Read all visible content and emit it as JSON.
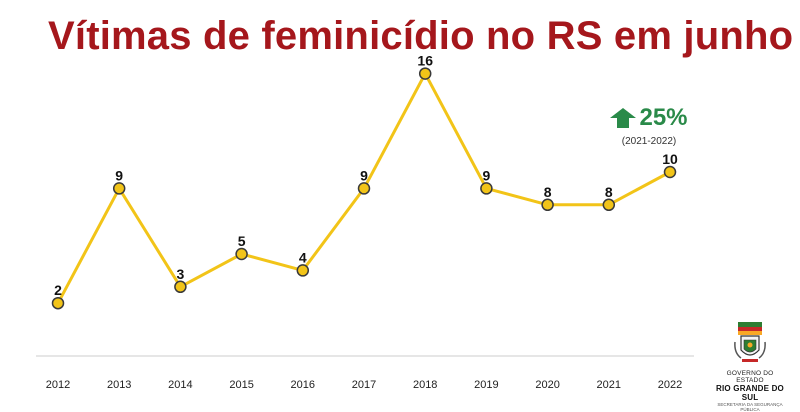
{
  "header": {
    "title": "Vítimas de feminicídio no RS em junho"
  },
  "badge": {
    "percent": "25%",
    "period": "(2021-2022)",
    "icon": "arrow-up-icon",
    "color": "#2a8a49"
  },
  "logo": {
    "line1": "GOVERNO DO ESTADO",
    "line2": "RIO GRANDE DO SUL",
    "line3": "SECRETARIA DA SEGURANÇA PÚBLICA",
    "icon": "state-coat-of-arms-icon"
  },
  "chart_data": {
    "type": "line",
    "title": "Vítimas de feminicídio no RS em junho",
    "xlabel": "",
    "ylabel": "",
    "categories": [
      "2012",
      "2013",
      "2014",
      "2015",
      "2016",
      "2017",
      "2018",
      "2019",
      "2020",
      "2021",
      "2022"
    ],
    "series": [
      {
        "values": [
          2,
          9,
          3,
          5,
          4,
          9,
          16,
          9,
          8,
          8,
          10
        ],
        "color": "#f2c418"
      }
    ],
    "ylim": [
      0,
      17
    ],
    "grid": false,
    "legend": "none",
    "data_labels": true
  }
}
